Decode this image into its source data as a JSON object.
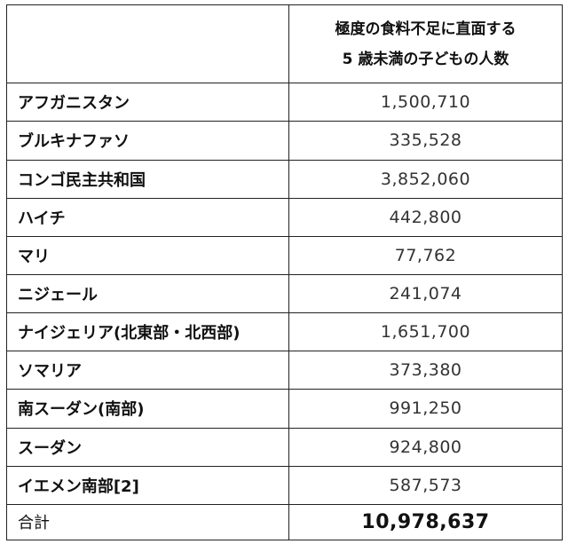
{
  "header": {
    "line1": "極度の食料不足に直面する",
    "line2": "5 歳未満の子どもの人数"
  },
  "rows": [
    {
      "country": "アフガニスタン",
      "value": "1,500,710"
    },
    {
      "country": "ブルキナファソ",
      "value": "335,528"
    },
    {
      "country": "コンゴ民主共和国",
      "value": "3,852,060"
    },
    {
      "country": "ハイチ",
      "value": "442,800"
    },
    {
      "country": "マリ",
      "value": "77,762"
    },
    {
      "country": "ニジェール",
      "value": "241,074"
    },
    {
      "country": "ナイジェリア(北東部・北西部)",
      "value": "1,651,700"
    },
    {
      "country": "ソマリア",
      "value": "373,380"
    },
    {
      "country": "南スーダン(南部)",
      "value": "991,250"
    },
    {
      "country": "スーダン",
      "value": "924,800"
    },
    {
      "country": "イエメン南部[2]",
      "value": "587,573"
    }
  ],
  "total": {
    "label": "合計",
    "value": "10,978,637"
  }
}
